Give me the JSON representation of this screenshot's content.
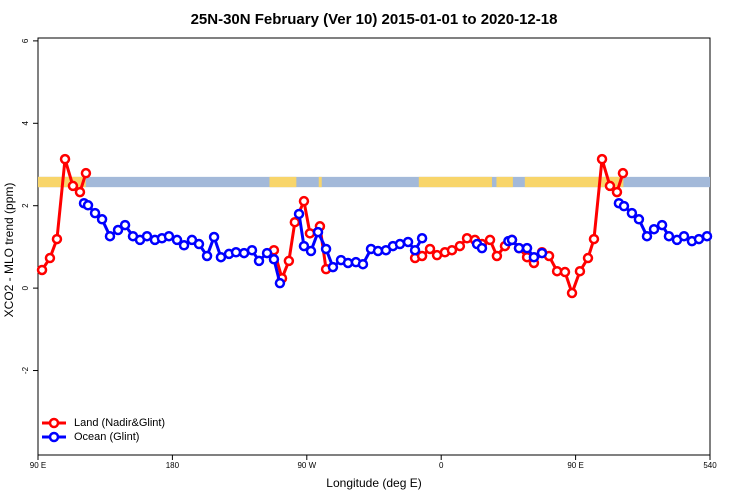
{
  "chart_data": {
    "type": "line",
    "title": "25N-30N February (Ver 10)   2015-01-01 to 2020-12-18",
    "x_label": "Longitude (deg E)",
    "y_label": "XCO2 - MLO trend (ppm)",
    "xlim": [
      90,
      540
    ],
    "xticks": [
      {
        "value": 90,
        "label": "90 E"
      },
      180,
      {
        "value": 270,
        "label": "90 W"
      },
      {
        "value": 360,
        "label": "0"
      },
      {
        "value": 450,
        "label": "90 E"
      },
      540
    ],
    "ylim": [
      -4.05,
      6.07
    ],
    "yticks": [
      -2,
      0,
      2,
      4,
      6
    ],
    "legend": "bottom-left",
    "band_y": [
      2.45,
      2.7
    ],
    "ocean_color": "#a3b9d9",
    "land_color": "#f8d56a",
    "land_bands": [
      [
        90,
        122
      ],
      [
        245,
        263
      ],
      [
        278,
        280
      ],
      [
        345,
        394
      ],
      [
        397,
        408
      ],
      [
        416,
        482
      ]
    ],
    "series": [
      {
        "name": "Land (Nadir&Glint)",
        "color": "#ff0000",
        "x": [
          92.7,
          98.0,
          102.7,
          108.1,
          113.4,
          118.1,
          122.1,
          null,
          248.0,
          253.4,
          258.0,
          262.0,
          268.1,
          272.1,
          278.8,
          282.9,
          null,
          342.5,
          347.2,
          352.5,
          357.2,
          362.5,
          367.2,
          372.5,
          377.3,
          382.6,
          387.3,
          392.7,
          397.3,
          402.7,
          407.4,
          412.1,
          417.5,
          422.1,
          427.5,
          432.2,
          437.6,
          442.9,
          447.6,
          452.9,
          458.3,
          462.3,
          467.7,
          473.0,
          477.7,
          481.7
        ],
        "values": [
          0.44,
          0.73,
          1.19,
          3.13,
          2.48,
          2.33,
          2.79,
          null,
          0.92,
          0.24,
          0.66,
          1.6,
          2.11,
          1.33,
          1.5,
          0.46,
          null,
          0.73,
          0.78,
          0.95,
          0.8,
          0.87,
          0.92,
          1.02,
          1.21,
          1.17,
          1.07,
          1.17,
          0.78,
          1.02,
          1.17,
          0.97,
          0.75,
          0.61,
          0.87,
          0.78,
          0.41,
          0.39,
          -0.12,
          0.41,
          0.73,
          1.19,
          3.13,
          2.48,
          2.33,
          2.79
        ]
      },
      {
        "name": "Ocean (Glint)",
        "color": "#0000ff",
        "x": [
          120.8,
          123.5,
          128.2,
          132.9,
          138.2,
          143.6,
          148.3,
          153.6,
          158.3,
          163.0,
          168.3,
          173.0,
          177.7,
          183.1,
          187.8,
          193.1,
          197.8,
          203.2,
          207.9,
          212.5,
          217.9,
          222.6,
          228.0,
          233.3,
          238.0,
          243.4,
          248.0,
          252.0,
          null,
          264.8,
          268.1,
          272.8,
          277.5,
          282.9,
          287.5,
          292.9,
          297.6,
          302.9,
          307.6,
          313.0,
          317.7,
          323.0,
          327.7,
          332.4,
          337.8,
          342.5,
          347.2,
          null,
          384.0,
          387.3,
          null,
          405.0,
          407.4,
          412.1,
          417.5,
          422.1,
          427.5,
          null,
          479.0,
          482.4,
          487.7,
          492.4,
          497.8,
          502.5,
          507.9,
          512.5,
          517.9,
          522.6,
          527.9,
          532.6,
          538.0
        ],
        "values": [
          2.06,
          2.01,
          1.82,
          1.67,
          1.26,
          1.41,
          1.53,
          1.26,
          1.17,
          1.26,
          1.17,
          1.21,
          1.26,
          1.17,
          1.04,
          1.17,
          1.07,
          0.78,
          1.24,
          0.75,
          0.83,
          0.87,
          0.85,
          0.92,
          0.66,
          0.85,
          0.7,
          0.12,
          null,
          1.8,
          1.02,
          0.9,
          1.36,
          0.95,
          0.51,
          0.68,
          0.61,
          0.63,
          0.58,
          0.95,
          0.9,
          0.92,
          1.02,
          1.07,
          1.12,
          0.92,
          1.21,
          null,
          1.07,
          0.97,
          null,
          1.14,
          1.17,
          0.97,
          0.97,
          0.75,
          0.85,
          null,
          2.06,
          1.99,
          1.82,
          1.67,
          1.26,
          1.43,
          1.53,
          1.26,
          1.17,
          1.26,
          1.14,
          1.19,
          1.26
        ]
      }
    ]
  }
}
